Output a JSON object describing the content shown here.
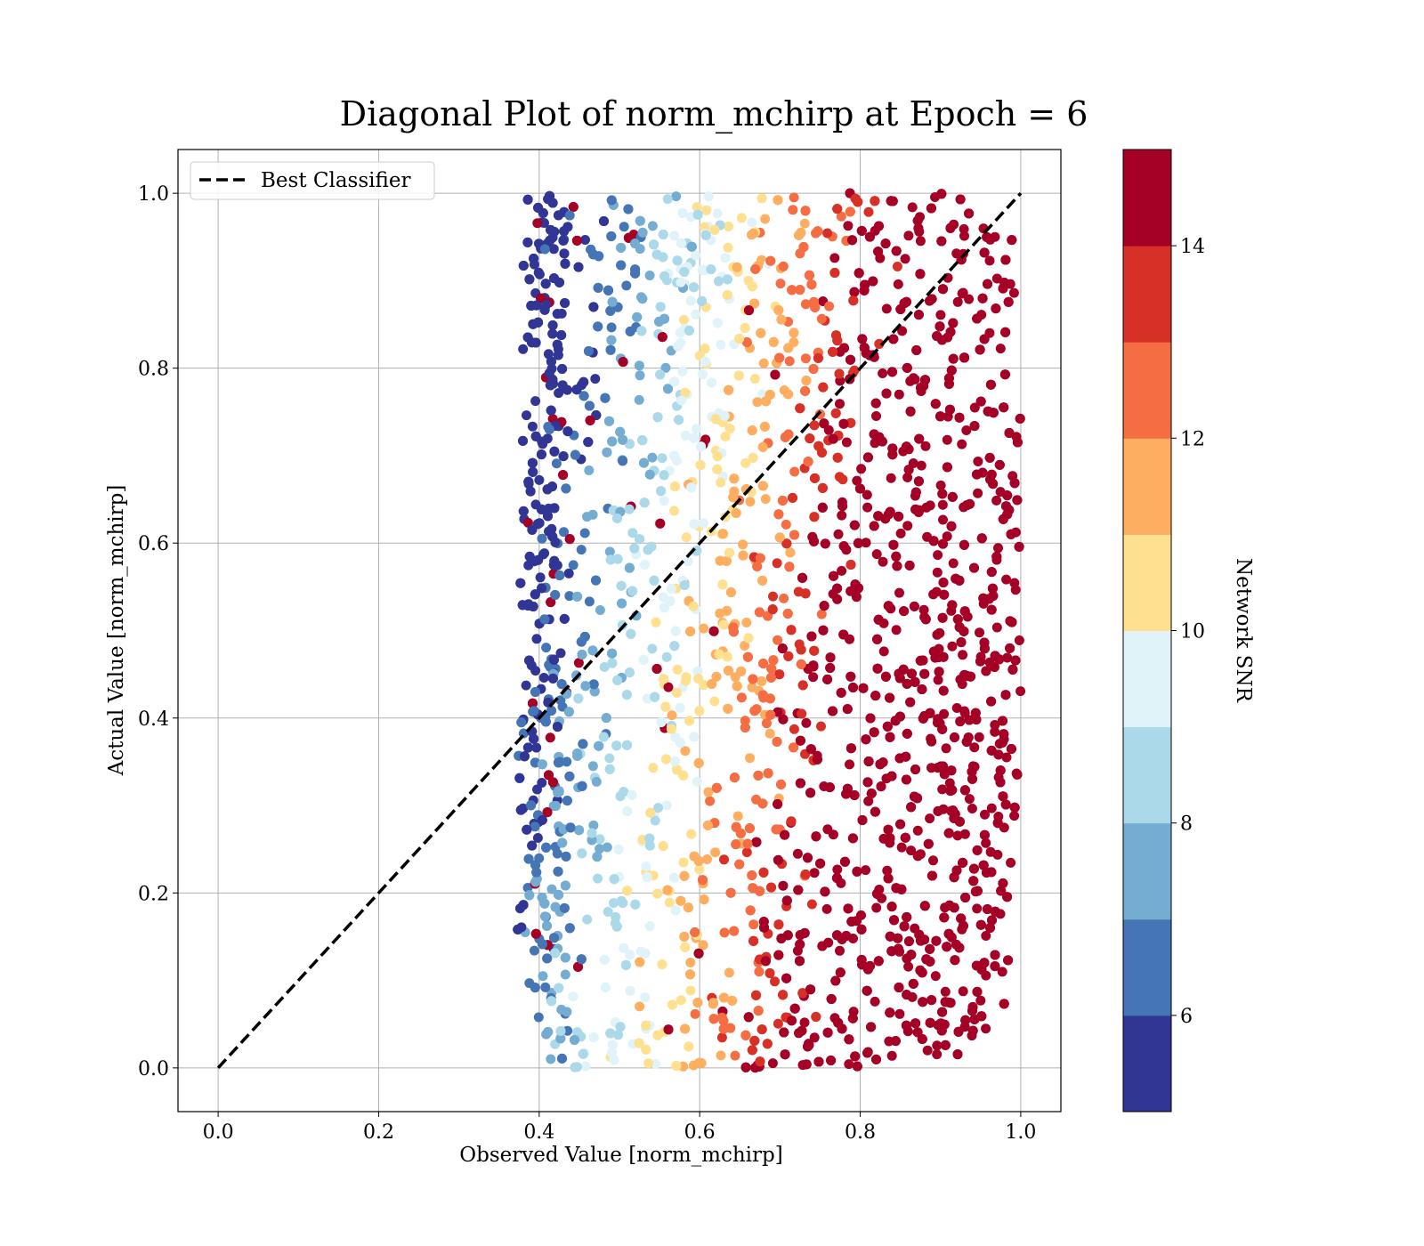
{
  "chart_data": {
    "type": "scatter",
    "title": "Diagonal Plot of norm_mchirp at Epoch = 6",
    "xlabel": "Observed Value [norm_mchirp]",
    "ylabel": "Actual Value [norm_mchirp]",
    "xlim": [
      -0.05,
      1.05
    ],
    "ylim": [
      -0.05,
      1.05
    ],
    "x_ticks": [
      "0.0",
      "0.2",
      "0.4",
      "0.6",
      "0.8",
      "1.0"
    ],
    "y_ticks": [
      "0.0",
      "0.2",
      "0.4",
      "0.6",
      "0.8",
      "1.0"
    ],
    "grid": true,
    "legend": {
      "position": "upper-left",
      "entries": [
        "Best Classifier"
      ]
    },
    "reference_line": {
      "name": "Best Classifier",
      "style": "dashed",
      "color": "#000000",
      "x": [
        0,
        1
      ],
      "y": [
        0,
        1
      ]
    },
    "scatter_extent": {
      "x": [
        0.37,
        1.0
      ],
      "y": [
        0.0,
        1.0
      ]
    },
    "color_trend": "SNR increases with observed value: ~5 near x=0.37, ~15 for x>0.8",
    "colorbar": {
      "label": "Network SNR",
      "range": [
        5,
        15
      ],
      "ticks": [
        "6",
        "8",
        "10",
        "12",
        "14"
      ],
      "tick_values": [
        6,
        8,
        10,
        12,
        14
      ],
      "colors": [
        "#313695",
        "#4575b4",
        "#74add1",
        "#abd9e9",
        "#e0f3f8",
        "#fee090",
        "#fdae61",
        "#f46d43",
        "#d73027",
        "#a50026"
      ]
    }
  }
}
